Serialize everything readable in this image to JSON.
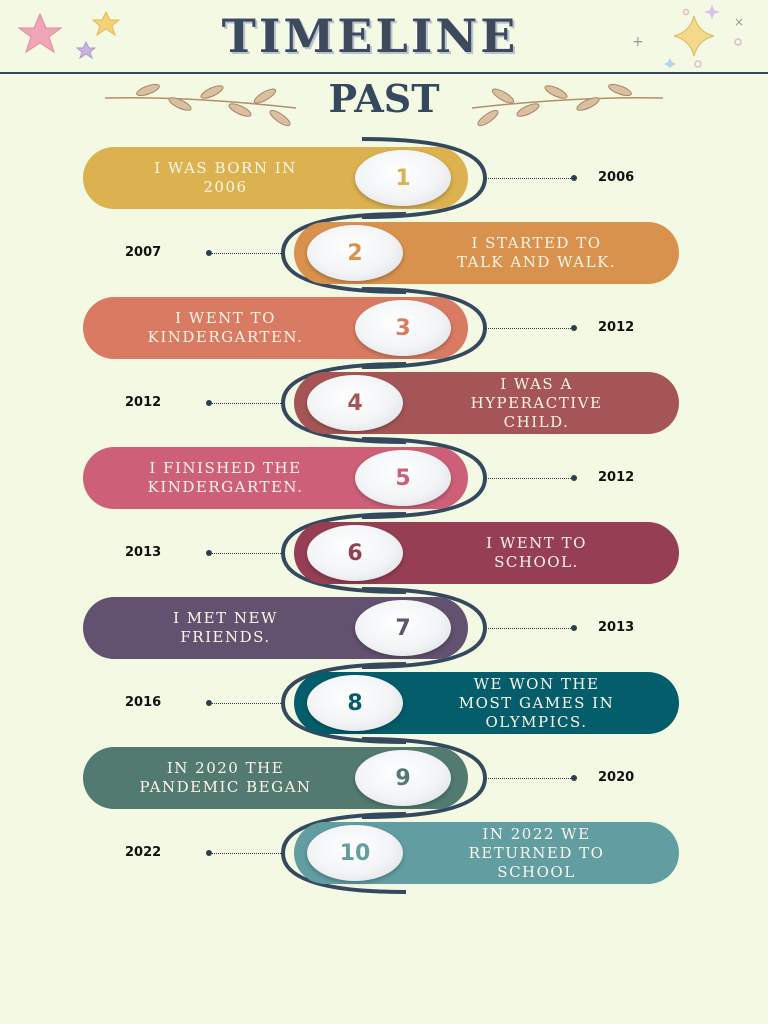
{
  "header": {
    "title": "TIMELINE",
    "subtitle": "PAST"
  },
  "colors": {
    "title": "#3c4a5c",
    "line": "#34495e",
    "background": "#f3f9e3"
  },
  "events": [
    {
      "number": "1",
      "text": "I was born in\n2006",
      "year": "2006",
      "color": "#dcb150",
      "side": "left"
    },
    {
      "number": "2",
      "text": "I started to\ntalk and walk.",
      "year": "2007",
      "color": "#d9924e",
      "side": "right"
    },
    {
      "number": "3",
      "text": "I went to\nkindergarten.",
      "year": "2012",
      "color": "#d97b62",
      "side": "left"
    },
    {
      "number": "4",
      "text": "I was a\nhyperactive\nchild.",
      "year": "2012",
      "color": "#a65556",
      "side": "right"
    },
    {
      "number": "5",
      "text": "I finished the\nkindergarten.",
      "year": "2012",
      "color": "#cd6078",
      "side": "left"
    },
    {
      "number": "6",
      "text": "I went to\nschool.",
      "year": "2013",
      "color": "#963e54",
      "side": "right"
    },
    {
      "number": "7",
      "text": "I met new\nfriends.",
      "year": "2013",
      "color": "#62516f",
      "side": "left"
    },
    {
      "number": "8",
      "text": "We won the\nmost games in\nOlympics.",
      "year": "2016",
      "color": "#045d6b",
      "side": "right"
    },
    {
      "number": "9",
      "text": "In 2020 the\npandemic began",
      "year": "2020",
      "color": "#527a70",
      "side": "left"
    },
    {
      "number": "10",
      "text": "In 2022 we\nreturned to\nschool",
      "year": "2022",
      "color": "#629da2",
      "side": "right"
    }
  ],
  "icons": {
    "stars_left": "star-cluster-icon",
    "stars_right": "sparkle-cluster-icon",
    "branch_left": "laurel-branch-icon",
    "branch_right": "laurel-branch-icon"
  }
}
